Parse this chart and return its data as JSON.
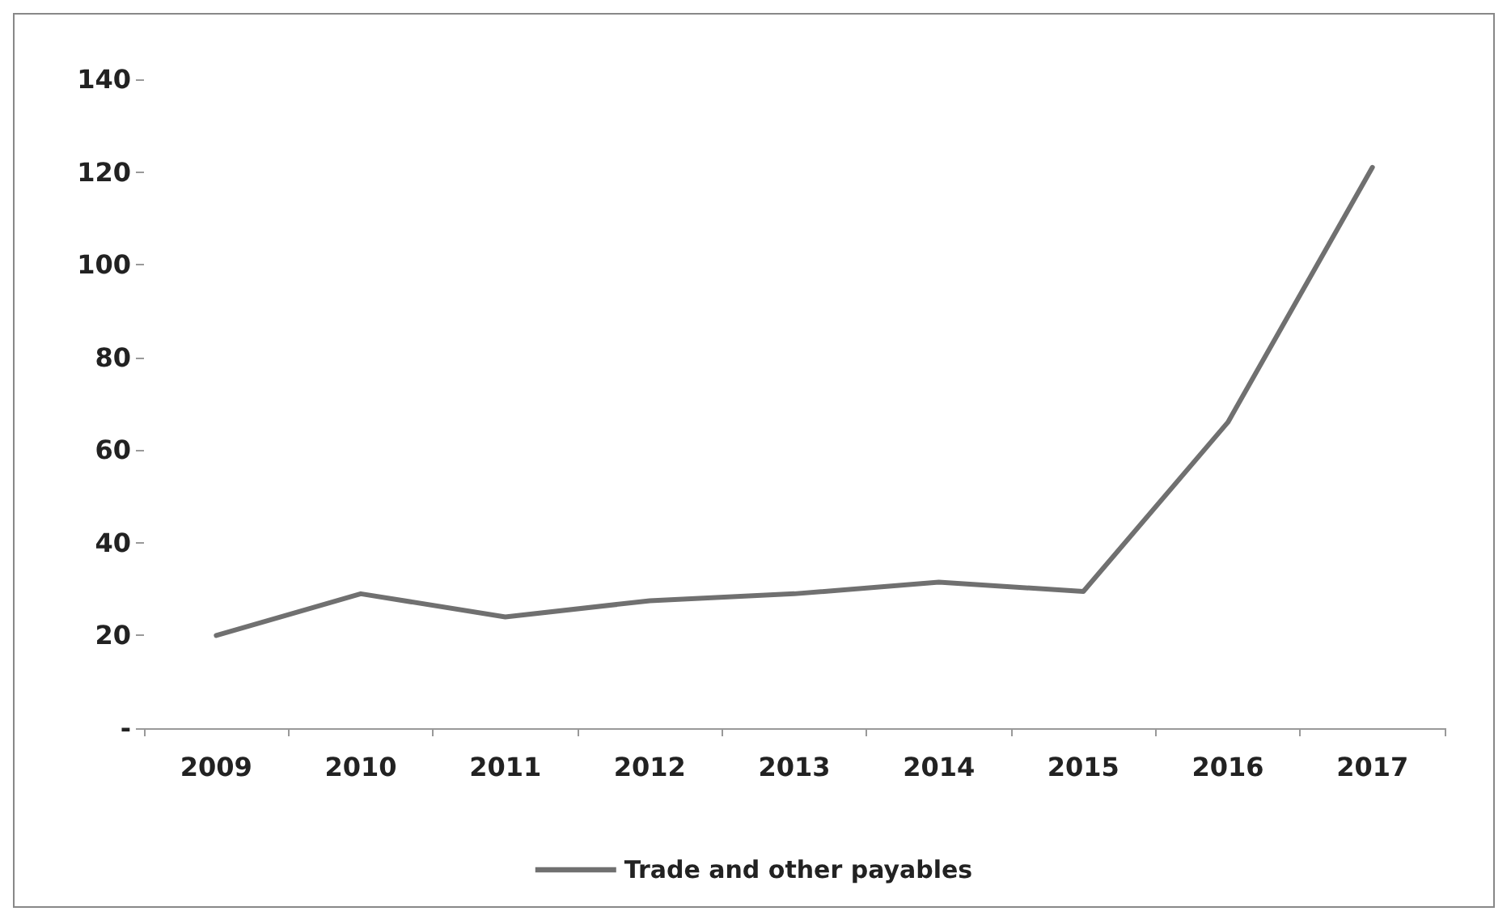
{
  "chart_data": {
    "type": "line",
    "categories": [
      "2009",
      "2010",
      "2011",
      "2012",
      "2013",
      "2014",
      "2015",
      "2016",
      "2017"
    ],
    "series": [
      {
        "name": "Trade and other payables",
        "color": "#707070",
        "values": [
          20,
          29,
          24,
          27.5,
          29,
          31.5,
          29.5,
          66,
          121
        ]
      }
    ],
    "ylim": [
      0,
      140
    ],
    "yticks": [
      {
        "value": 0,
        "label": "-"
      },
      20,
      40,
      60,
      80,
      100,
      120,
      140
    ],
    "grid": false,
    "legend": "bottom",
    "marker": "none",
    "line_style": "solid"
  }
}
